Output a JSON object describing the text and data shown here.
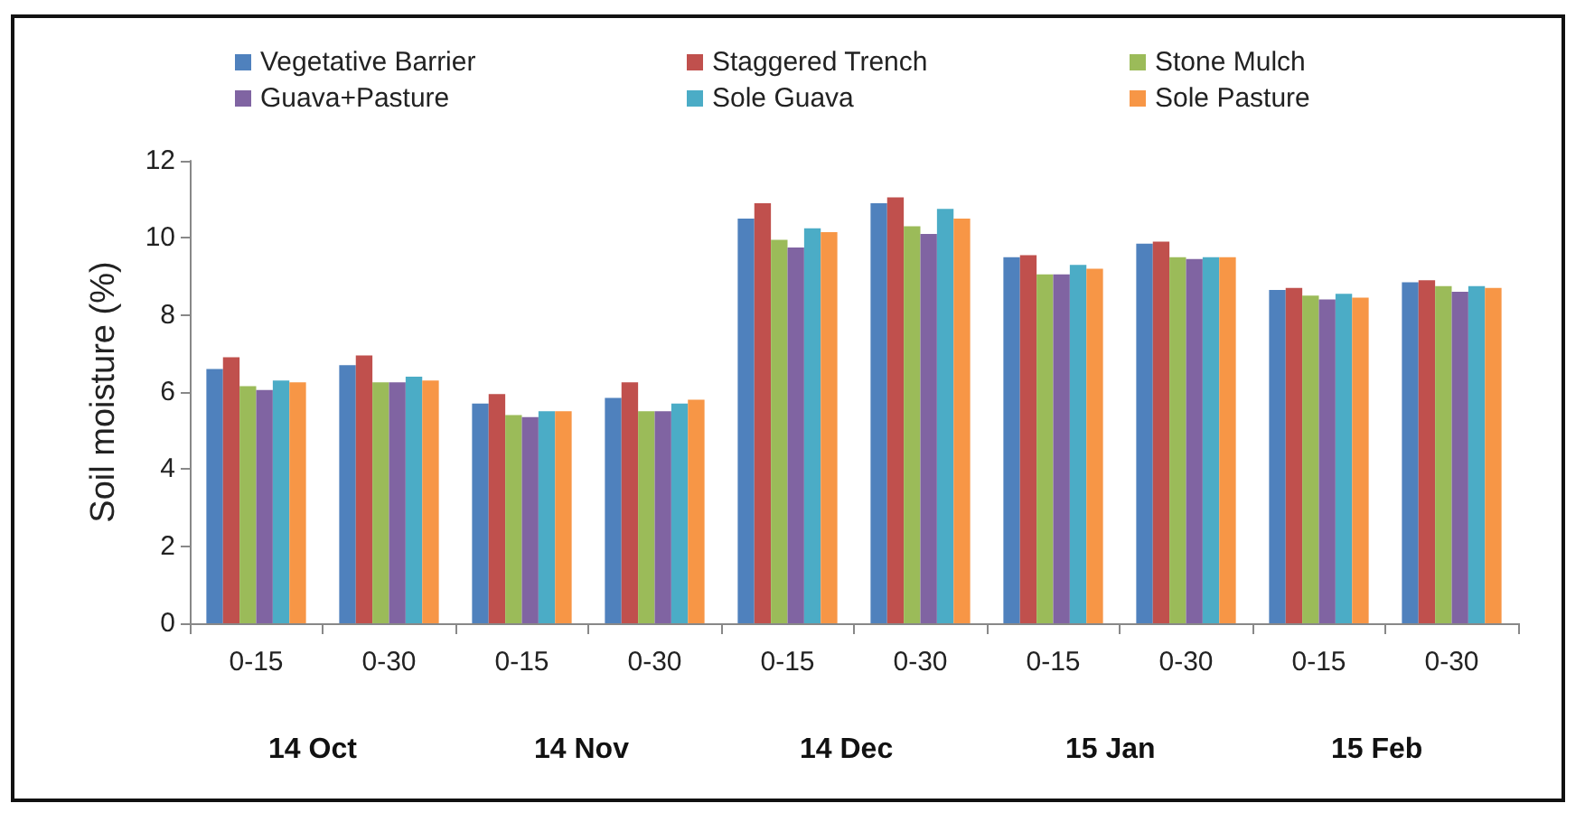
{
  "chart_data": {
    "type": "bar",
    "ylabel": "Soil moisture (%)",
    "categories": [
      "0-15",
      "0-30",
      "0-15",
      "0-30",
      "0-15",
      "0-30",
      "0-15",
      "0-30",
      "0-15",
      "0-30"
    ],
    "annotations": [
      "14 Oct",
      "14 Nov",
      "14 Dec",
      "15 Jan",
      "15 Feb"
    ],
    "series": [
      {
        "name": "Vegetative Barrier",
        "color": "#4f81bd",
        "values": [
          6.6,
          6.7,
          5.7,
          5.85,
          10.5,
          10.9,
          9.5,
          9.85,
          8.65,
          8.85
        ]
      },
      {
        "name": "Staggered Trench",
        "color": "#c0504d",
        "values": [
          6.9,
          6.95,
          5.95,
          6.25,
          10.9,
          11.05,
          9.55,
          9.9,
          8.7,
          8.9
        ]
      },
      {
        "name": "Stone Mulch",
        "color": "#9bbb59",
        "values": [
          6.15,
          6.25,
          5.4,
          5.5,
          9.95,
          10.3,
          9.05,
          9.5,
          8.5,
          8.75
        ]
      },
      {
        "name": "Guava+Pasture",
        "color": "#8064a2",
        "values": [
          6.05,
          6.25,
          5.35,
          5.5,
          9.75,
          10.1,
          9.05,
          9.45,
          8.4,
          8.6
        ]
      },
      {
        "name": "Sole Guava",
        "color": "#4bacc6",
        "values": [
          6.3,
          6.4,
          5.5,
          5.7,
          10.25,
          10.75,
          9.3,
          9.5,
          8.55,
          8.75
        ]
      },
      {
        "name": "Sole Pasture",
        "color": "#f79646",
        "values": [
          6.25,
          6.3,
          5.5,
          5.8,
          10.15,
          10.5,
          9.2,
          9.5,
          8.45,
          8.7
        ]
      }
    ],
    "ylim": [
      0,
      12
    ],
    "yticks": [
      0,
      2,
      4,
      6,
      8,
      10,
      12
    ],
    "grid": false,
    "legend": "top"
  }
}
